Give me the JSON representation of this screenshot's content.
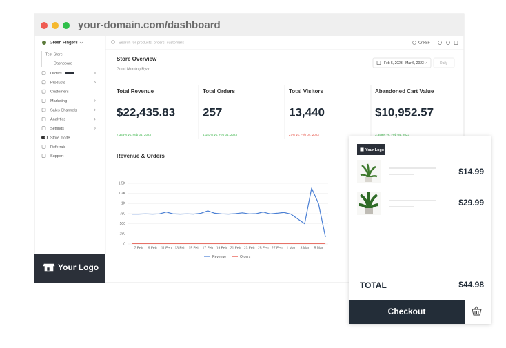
{
  "browser": {
    "url": "your-domain.com/dashboard"
  },
  "sidebar": {
    "store_name": "Green Fingers",
    "store_label": "Test Store",
    "current": "Dashboard",
    "items": [
      "Orders",
      "Products",
      "Customers",
      "Marketing",
      "Sales Channels",
      "Analytics",
      "Settings",
      "Store mode",
      "Referrals",
      "Support"
    ],
    "logo": "Your Logo"
  },
  "header": {
    "search_placeholder": "Search for products, orders, customers",
    "create": "Create"
  },
  "overview": {
    "title": "Store Overview",
    "greeting": "Good Morning Ryan",
    "date_range": "Feb 5, 2023 - Mar 6, 2023",
    "interval": "Daily"
  },
  "kpis": [
    {
      "label": "Total Revenue",
      "value": "$22,435.83",
      "change": "7.343% vs. Feb 04, 2023",
      "color": "#3cb54a"
    },
    {
      "label": "Total Orders",
      "value": "257",
      "change": "4.153% vs. Feb 04, 2023",
      "color": "#3cb54a"
    },
    {
      "label": "Total Visitors",
      "value": "13,440",
      "change": "27% vs. Feb 04, 2023",
      "color": "#e5483b"
    },
    {
      "label": "Abandoned Cart Value",
      "value": "$10,952.57",
      "change": "3.359% vs. Feb 04, 2023",
      "color": "#3cb54a"
    }
  ],
  "chart_data": {
    "type": "line",
    "title": "Revenue & Orders",
    "categories": [
      null,
      "7 Feb",
      null,
      "9 Feb",
      null,
      "11 Feb",
      null,
      "13 Feb",
      null,
      "15 Feb",
      null,
      "17 Feb",
      null,
      "19 Feb",
      null,
      "21 Feb",
      null,
      "23 Feb",
      null,
      "25 Feb",
      null,
      "27 Feb",
      null,
      "1 Mar",
      null,
      "3 Mar",
      null,
      "5 Mar",
      null
    ],
    "series": [
      {
        "name": "Revenue",
        "color": "#4a7fd4",
        "values": [
          740,
          740,
          745,
          740,
          745,
          790,
          745,
          740,
          745,
          740,
          760,
          820,
          760,
          745,
          740,
          750,
          770,
          745,
          750,
          790,
          745,
          760,
          780,
          740,
          620,
          500,
          1380,
          1000,
          170
        ]
      },
      {
        "name": "Orders",
        "color": "#e5483b",
        "values": [
          15,
          15,
          15,
          15,
          15,
          15,
          15,
          15,
          15,
          15,
          15,
          15,
          15,
          15,
          15,
          15,
          15,
          15,
          15,
          15,
          15,
          15,
          15,
          15,
          15,
          15,
          15,
          15,
          15
        ]
      }
    ],
    "ylim": [
      0,
      1500
    ],
    "yticks": [
      0,
      250,
      500,
      750,
      {
        "value": 1000,
        "label": "1K"
      },
      {
        "value": 1250,
        "label": "1.2K"
      },
      {
        "value": 1500,
        "label": "1.5K"
      }
    ],
    "grid": true
  },
  "cart": {
    "logo": "Your Logo",
    "items": [
      {
        "price": "$14.99"
      },
      {
        "price": "$29.99"
      }
    ],
    "total_label": "TOTAL",
    "total": "$44.98",
    "checkout": "Checkout"
  }
}
